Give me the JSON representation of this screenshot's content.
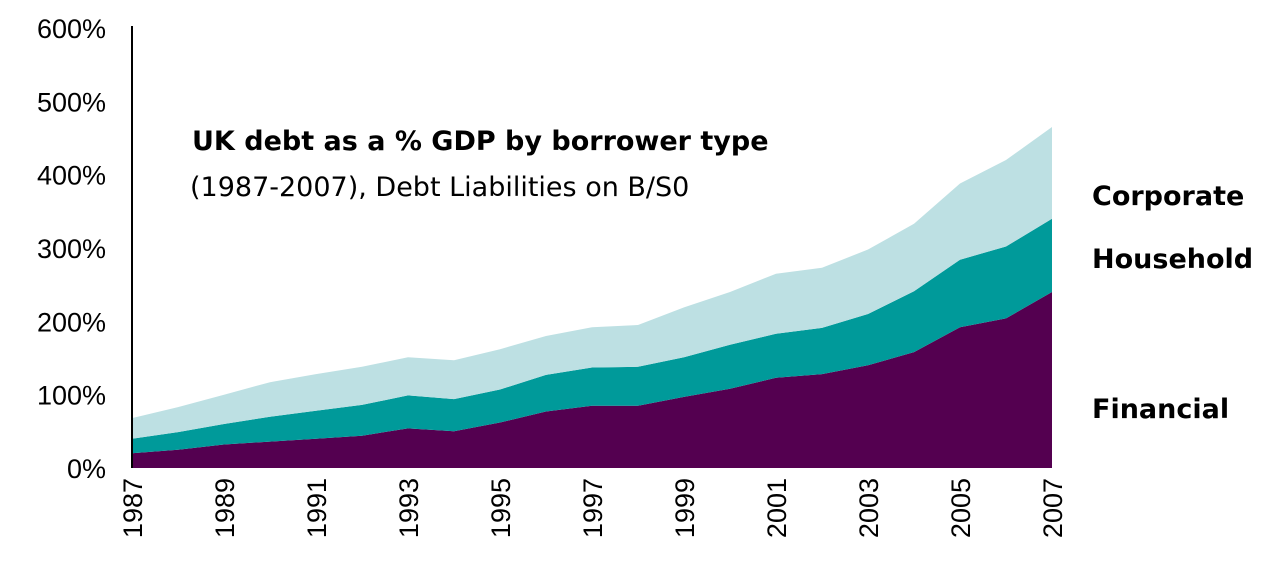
{
  "chart_data": {
    "type": "area",
    "stacked": true,
    "title": "UK debt as a % GDP  by borrower type",
    "subtitle": "(1987-2007), Debt Liabilities on B/S0",
    "ylim": [
      0,
      600
    ],
    "y_ticks": [
      "0%",
      "100%",
      "200%",
      "300%",
      "400%",
      "500%",
      "600%"
    ],
    "y_tick_values": [
      0,
      100,
      200,
      300,
      400,
      500,
      600
    ],
    "x": [
      1987,
      1988,
      1989,
      1990,
      1991,
      1992,
      1993,
      1994,
      1995,
      1996,
      1997,
      1998,
      1999,
      2000,
      2001,
      2002,
      2003,
      2004,
      2005,
      2006,
      2007
    ],
    "x_tick_labels": [
      "1987",
      "1989",
      "1991",
      "1993",
      "1995",
      "1997",
      "1999",
      "2001",
      "2003",
      "2005",
      "2007"
    ],
    "legend_placement": "right",
    "grid": false,
    "series": [
      {
        "name": "Financial",
        "color": "#540050",
        "values": [
          20,
          25,
          32,
          36,
          40,
          44,
          54,
          50,
          62,
          77,
          85,
          85,
          97,
          108,
          123,
          128,
          140,
          158,
          192,
          204,
          240
        ]
      },
      {
        "name": "Household",
        "color": "#009a9a",
        "values": [
          20,
          24,
          28,
          34,
          38,
          42,
          45,
          44,
          45,
          50,
          52,
          53,
          54,
          60,
          60,
          63,
          70,
          83,
          92,
          98,
          100
        ]
      },
      {
        "name": "Corporate",
        "color": "#bde0e3",
        "values": [
          28,
          34,
          40,
          47,
          50,
          52,
          52,
          53,
          55,
          53,
          55,
          57,
          68,
          72,
          82,
          82,
          88,
          92,
          104,
          118,
          125
        ]
      }
    ]
  }
}
